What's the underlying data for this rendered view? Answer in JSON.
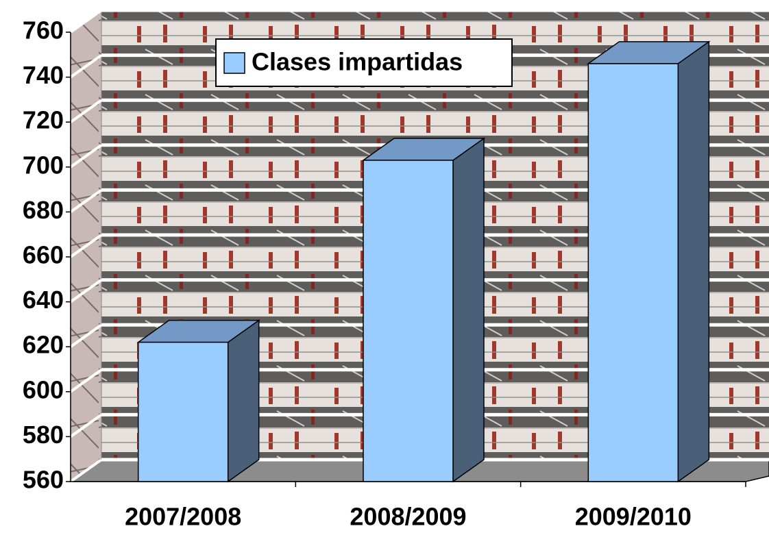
{
  "chart_data": {
    "type": "bar3d",
    "categories": [
      "2007/2008",
      "2008/2009",
      "2009/2010"
    ],
    "series": [
      {
        "name": "Clases impartidas",
        "color": "#99ccff",
        "values": [
          622,
          703,
          746
        ]
      }
    ],
    "ylim": [
      560,
      760
    ],
    "yticks": [
      560,
      580,
      600,
      620,
      640,
      660,
      680,
      700,
      720,
      740,
      760
    ],
    "grid": true,
    "legend": "top-left"
  }
}
